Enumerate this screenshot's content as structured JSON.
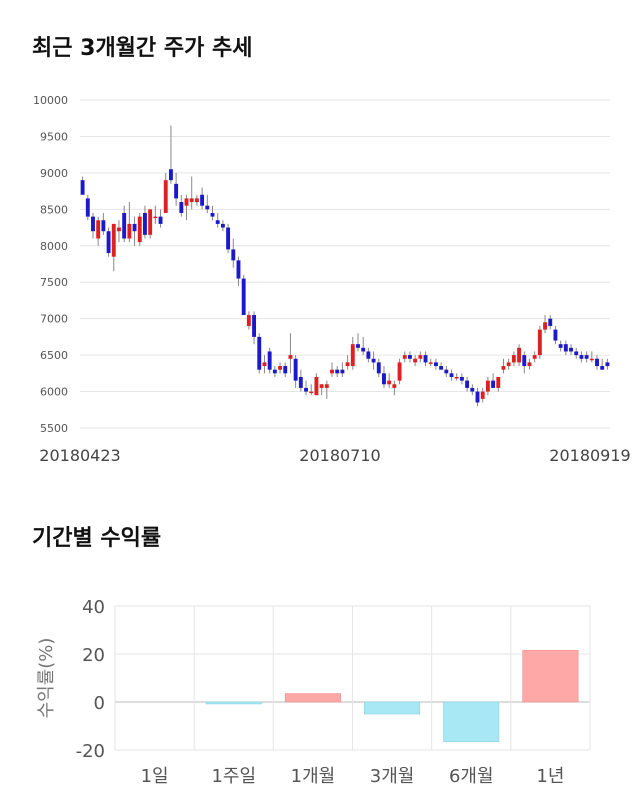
{
  "titles": {
    "price_trend": "최근 3개월간 주가 추세",
    "period_returns": "기간별 수익률"
  },
  "colors": {
    "up": "#e02020",
    "down": "#1a1acc",
    "positive_bar": "#ffa8a8",
    "negative_bar": "#a8e8f4",
    "grid": "#e6e6e6"
  },
  "chart_data": [
    {
      "type": "candlestick",
      "title": "최근 3개월간 주가 추세",
      "ylim": [
        5500,
        10000
      ],
      "yticks": [
        10000,
        9500,
        9000,
        8500,
        8000,
        7500,
        7000,
        6500,
        6000,
        5500
      ],
      "xtick_labels": [
        "20180423",
        "20180710",
        "20180919"
      ],
      "grid": true,
      "candles": [
        [
          8900,
          8950,
          8700,
          8700
        ],
        [
          8650,
          8700,
          8350,
          8400
        ],
        [
          8400,
          8450,
          8100,
          8200
        ],
        [
          8100,
          8400,
          8000,
          8350
        ],
        [
          8350,
          8450,
          8150,
          8200
        ],
        [
          8200,
          8250,
          7850,
          7900
        ],
        [
          7850,
          8300,
          7650,
          8300
        ],
        [
          8200,
          8350,
          8050,
          8250
        ],
        [
          8450,
          8550,
          8050,
          8100
        ],
        [
          8100,
          8600,
          8050,
          8300
        ],
        [
          8300,
          8400,
          8000,
          8200
        ],
        [
          8050,
          8450,
          8000,
          8400
        ],
        [
          8450,
          8550,
          8100,
          8150
        ],
        [
          8150,
          8500,
          8100,
          8500
        ],
        [
          8400,
          8550,
          8300,
          8400
        ],
        [
          8400,
          8500,
          8250,
          8300
        ],
        [
          8450,
          9000,
          8450,
          8900
        ],
        [
          9050,
          9650,
          8850,
          8900
        ],
        [
          8850,
          9000,
          8550,
          8650
        ],
        [
          8600,
          8700,
          8400,
          8450
        ],
        [
          8550,
          8700,
          8350,
          8650
        ],
        [
          8600,
          8950,
          8500,
          8650
        ],
        [
          8600,
          8700,
          8550,
          8650
        ],
        [
          8700,
          8800,
          8500,
          8550
        ],
        [
          8550,
          8700,
          8450,
          8500
        ],
        [
          8450,
          8550,
          8350,
          8400
        ],
        [
          8350,
          8450,
          8250,
          8300
        ],
        [
          8300,
          8350,
          8200,
          8250
        ],
        [
          8250,
          8300,
          7900,
          7950
        ],
        [
          7950,
          8100,
          7700,
          7800
        ],
        [
          7800,
          7850,
          7450,
          7550
        ],
        [
          7550,
          7600,
          7050,
          7050
        ],
        [
          6900,
          7100,
          6850,
          7050
        ],
        [
          7050,
          7100,
          6650,
          6750
        ],
        [
          6750,
          6800,
          6250,
          6300
        ],
        [
          6350,
          6500,
          6250,
          6400
        ],
        [
          6550,
          6600,
          6250,
          6300
        ],
        [
          6300,
          6350,
          6200,
          6250
        ],
        [
          6300,
          6400,
          6250,
          6350
        ],
        [
          6350,
          6400,
          6200,
          6250
        ],
        [
          6450,
          6800,
          6250,
          6500
        ],
        [
          6450,
          6500,
          6050,
          6150
        ],
        [
          6200,
          6300,
          6000,
          6050
        ],
        [
          6050,
          6150,
          5950,
          6000
        ],
        [
          6000,
          6100,
          5950,
          6000
        ],
        [
          5950,
          6250,
          5950,
          6200
        ],
        [
          6050,
          6100,
          5950,
          6100
        ],
        [
          6050,
          6150,
          5900,
          6100
        ],
        [
          6250,
          6400,
          6200,
          6300
        ],
        [
          6300,
          6350,
          6200,
          6250
        ],
        [
          6300,
          6400,
          6200,
          6250
        ],
        [
          6350,
          6500,
          6300,
          6400
        ],
        [
          6350,
          6750,
          6300,
          6650
        ],
        [
          6650,
          6800,
          6550,
          6600
        ],
        [
          6600,
          6750,
          6500,
          6550
        ],
        [
          6550,
          6600,
          6400,
          6450
        ],
        [
          6450,
          6550,
          6300,
          6400
        ],
        [
          6400,
          6450,
          6200,
          6250
        ],
        [
          6250,
          6350,
          6050,
          6100
        ],
        [
          6100,
          6250,
          6050,
          6150
        ],
        [
          6050,
          6150,
          5950,
          6100
        ],
        [
          6150,
          6450,
          6100,
          6400
        ],
        [
          6450,
          6550,
          6400,
          6500
        ],
        [
          6500,
          6550,
          6400,
          6450
        ],
        [
          6400,
          6500,
          6350,
          6450
        ],
        [
          6450,
          6550,
          6400,
          6500
        ],
        [
          6500,
          6550,
          6350,
          6400
        ],
        [
          6400,
          6450,
          6350,
          6400
        ],
        [
          6400,
          6450,
          6300,
          6350
        ],
        [
          6350,
          6400,
          6300,
          6300
        ],
        [
          6300,
          6350,
          6200,
          6250
        ],
        [
          6250,
          6300,
          6150,
          6200
        ],
        [
          6200,
          6250,
          6150,
          6200
        ],
        [
          6200,
          6250,
          6100,
          6150
        ],
        [
          6150,
          6200,
          6000,
          6050
        ],
        [
          6050,
          6100,
          5950,
          6000
        ],
        [
          6000,
          6050,
          5800,
          5850
        ],
        [
          5900,
          6050,
          5850,
          6000
        ],
        [
          6000,
          6200,
          5950,
          6150
        ],
        [
          6150,
          6250,
          6050,
          6050
        ],
        [
          6050,
          6200,
          6000,
          6200
        ],
        [
          6300,
          6450,
          6250,
          6350
        ],
        [
          6350,
          6450,
          6300,
          6400
        ],
        [
          6400,
          6550,
          6350,
          6500
        ],
        [
          6400,
          6650,
          6350,
          6600
        ],
        [
          6500,
          6550,
          6250,
          6350
        ],
        [
          6350,
          6450,
          6300,
          6400
        ],
        [
          6450,
          6550,
          6400,
          6500
        ],
        [
          6500,
          6900,
          6450,
          6850
        ],
        [
          6850,
          7050,
          6800,
          6950
        ],
        [
          7000,
          7050,
          6850,
          6900
        ],
        [
          6850,
          6900,
          6650,
          6700
        ],
        [
          6650,
          6700,
          6550,
          6600
        ],
        [
          6650,
          6700,
          6500,
          6550
        ],
        [
          6600,
          6650,
          6500,
          6550
        ],
        [
          6550,
          6600,
          6450,
          6500
        ],
        [
          6500,
          6550,
          6400,
          6450
        ],
        [
          6500,
          6550,
          6400,
          6450
        ],
        [
          6450,
          6550,
          6400,
          6450
        ],
        [
          6450,
          6500,
          6300,
          6350
        ],
        [
          6350,
          6450,
          6300,
          6300
        ],
        [
          6400,
          6450,
          6300,
          6350
        ]
      ]
    },
    {
      "type": "bar",
      "title": "기간별 수익률",
      "ylabel": "수익률(%)",
      "ylim": [
        -20,
        40
      ],
      "yticks": [
        40,
        20,
        0,
        -20
      ],
      "categories": [
        "1일",
        "1주일",
        "1개월",
        "3개월",
        "6개월",
        "1년"
      ],
      "values": [
        0,
        -0.8,
        3.5,
        -5,
        -16.5,
        21.5
      ],
      "grid": true
    }
  ]
}
